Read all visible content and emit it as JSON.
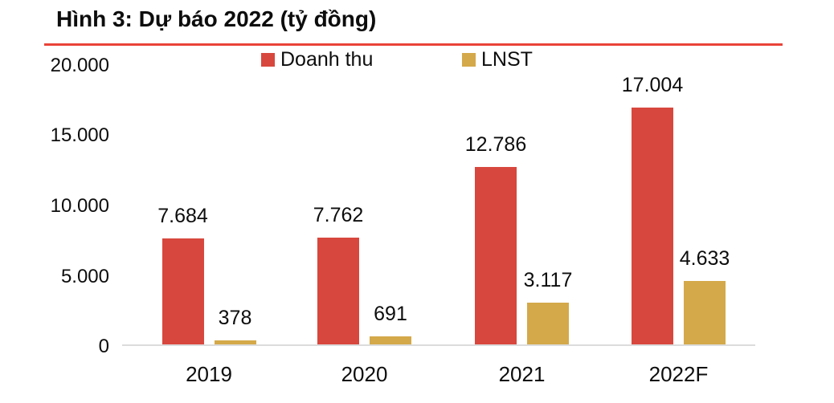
{
  "title": "Hình 3: Dự báo 2022 (tỷ đồng)",
  "colors": {
    "series_doanh_thu": "#d8473d",
    "series_lnst": "#d4a94a",
    "divider_line": "#ea4339",
    "axis_line": "#dcdcdc",
    "text": "#0d0d0d"
  },
  "chart_data": {
    "type": "bar",
    "title": "Hình 3: Dự báo 2022 (tỷ đồng)",
    "categories": [
      "2019",
      "2020",
      "2021",
      "2022F"
    ],
    "series": [
      {
        "name": "Doanh thu",
        "color": "#d8473d",
        "values": [
          7684,
          7762,
          12786,
          17004
        ],
        "labels": [
          "7.684",
          "7.762",
          "12.786",
          "17.004"
        ]
      },
      {
        "name": "LNST",
        "color": "#d4a94a",
        "values": [
          378,
          691,
          3117,
          4633
        ],
        "labels": [
          "378",
          "691",
          "3.117",
          "4.633"
        ]
      }
    ],
    "xlabel": "",
    "ylabel": "",
    "ylim": [
      0,
      20000
    ],
    "y_ticks": {
      "values": [
        20000,
        15000,
        10000,
        5000,
        0
      ],
      "labels": [
        "20.000",
        "15.000",
        "10.000",
        "5.000",
        "0"
      ]
    },
    "grid": false,
    "legend_position": "top"
  }
}
